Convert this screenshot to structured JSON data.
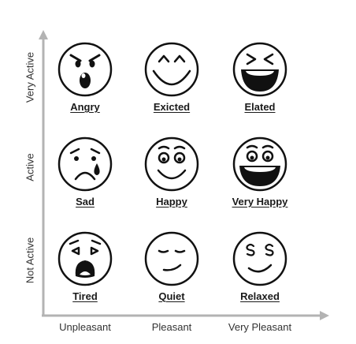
{
  "axes": {
    "x_labels": [
      "Unpleasant",
      "Pleasant",
      "Very Pleasant"
    ],
    "y_labels": [
      "Very Active",
      "Active",
      "Not Active"
    ],
    "color": "#b3b3b3"
  },
  "moods": [
    {
      "label": "Angry",
      "icon": "angry-face-icon"
    },
    {
      "label": "Exicted",
      "icon": "excited-face-icon"
    },
    {
      "label": "Elated",
      "icon": "elated-face-icon"
    },
    {
      "label": "Sad",
      "icon": "sad-face-icon"
    },
    {
      "label": "Happy",
      "icon": "happy-face-icon"
    },
    {
      "label": "Very Happy",
      "icon": "very-happy-face-icon"
    },
    {
      "label": "Tired",
      "icon": "tired-face-icon"
    },
    {
      "label": "Quiet",
      "icon": "quiet-face-icon"
    },
    {
      "label": "Relaxed",
      "icon": "relaxed-face-icon"
    }
  ]
}
